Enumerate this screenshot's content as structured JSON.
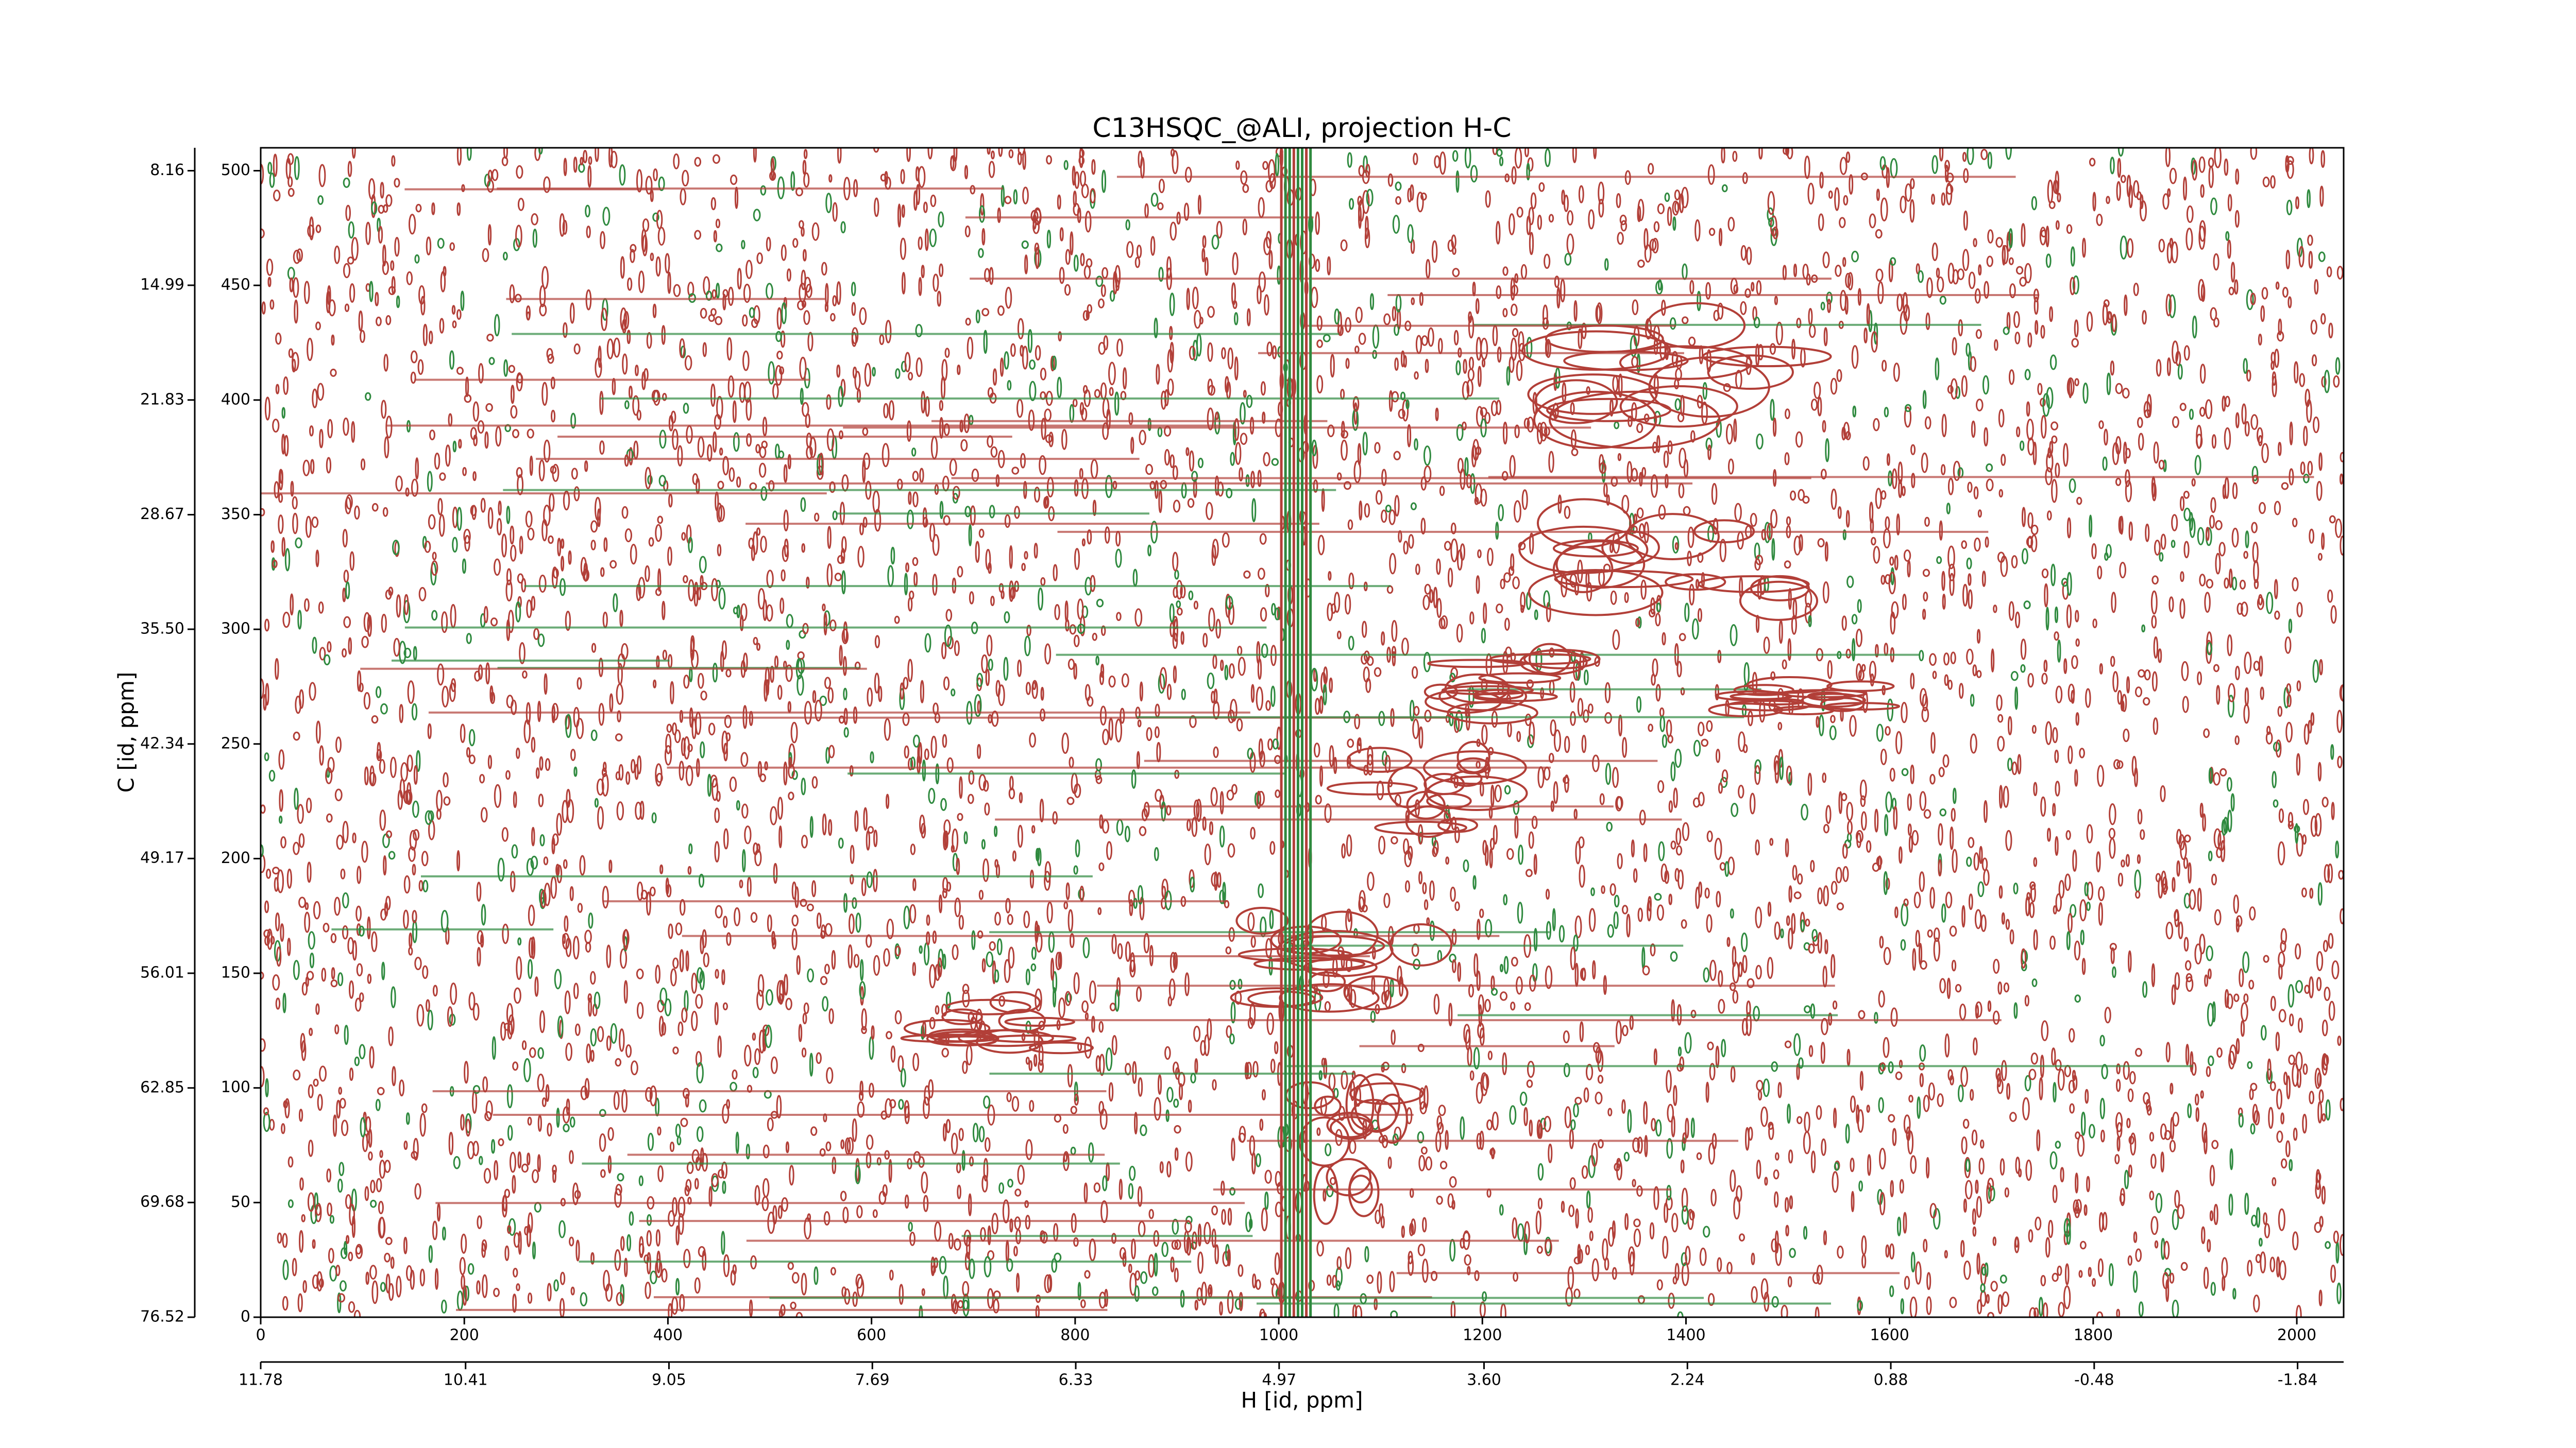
{
  "chart_data": {
    "type": "contour",
    "title": "C13HSQC_@ALI, projection H-C",
    "xlabel": "H [id, ppm]",
    "ylabel": "C [id, ppm]",
    "colors": [
      "#b23f38",
      "#2f8a3f"
    ],
    "xlim": [
      0,
      2046
    ],
    "xticks": [
      0,
      200,
      400,
      600,
      800,
      1000,
      1200,
      1400,
      1600,
      1800,
      2000
    ],
    "x2lim": [
      11.78,
      -2.148
    ],
    "x2ticks": [
      11.78,
      10.41,
      9.05,
      7.69,
      6.33,
      4.97,
      {
        "value": 3.6,
        "label": "3.60"
      },
      2.24,
      0.88,
      -0.48,
      -1.84
    ],
    "ylim": [
      0,
      510
    ],
    "yticks": [
      0,
      50,
      100,
      150,
      200,
      250,
      300,
      350,
      400,
      450,
      500
    ],
    "y2lim": [
      76.52,
      6.793
    ],
    "y2ticks": [
      8.16,
      14.99,
      21.83,
      28.67,
      {
        "value": 35.5,
        "label": "35.50"
      },
      42.34,
      49.17,
      56.01,
      62.85,
      69.68,
      76.52
    ]
  }
}
